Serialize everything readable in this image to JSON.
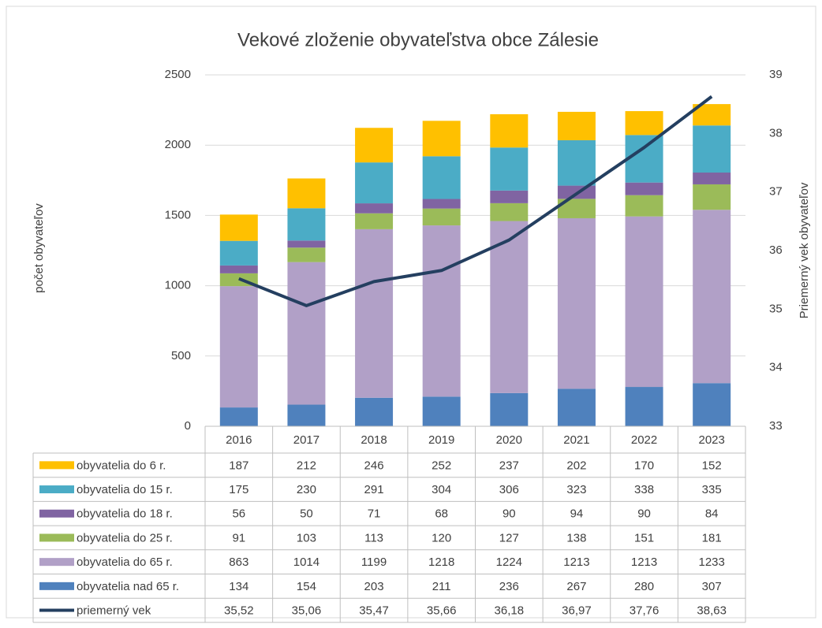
{
  "chart_data": {
    "type": "bar",
    "stacked": true,
    "title": "Vekové zloženie obyvateľstva obce Zálesie",
    "y_label": "počet obyvateľov",
    "y2_label": "Priemerný vek obyvateľov",
    "categories": [
      "2016",
      "2017",
      "2018",
      "2019",
      "2020",
      "2021",
      "2022",
      "2023"
    ],
    "ylim": [
      0,
      2500
    ],
    "yticks": [
      0,
      500,
      1000,
      1500,
      2000,
      2500
    ],
    "y2lim": [
      33,
      39
    ],
    "y2ticks": [
      33,
      34,
      35,
      36,
      37,
      38,
      39
    ],
    "grid": true,
    "data_table": true,
    "series": [
      {
        "name": "obyvatelia do 6 r.",
        "color": "#FFC000",
        "values": [
          187,
          212,
          246,
          252,
          237,
          202,
          170,
          152
        ]
      },
      {
        "name": "obyvatelia do 15 r.",
        "color": "#4BACC6",
        "values": [
          175,
          230,
          291,
          304,
          306,
          323,
          338,
          335
        ]
      },
      {
        "name": "obyvatelia do 18 r.",
        "color": "#8064A2",
        "values": [
          56,
          50,
          71,
          68,
          90,
          94,
          90,
          84
        ]
      },
      {
        "name": "obyvatelia do 25 r.",
        "color": "#9BBB59",
        "values": [
          91,
          103,
          113,
          120,
          127,
          138,
          151,
          181
        ]
      },
      {
        "name": "obyvatelia do 65 r.",
        "color": "#B1A0C7",
        "values": [
          863,
          1014,
          1199,
          1218,
          1224,
          1213,
          1213,
          1233
        ]
      },
      {
        "name": "obyvatelia nad 65 r.",
        "color": "#4F81BD",
        "values": [
          134,
          154,
          203,
          211,
          236,
          267,
          280,
          307
        ]
      },
      {
        "name": "priemerný vek",
        "color": "#243F60",
        "type": "line",
        "axis": "y2",
        "values": [
          35.52,
          35.06,
          35.47,
          35.66,
          36.18,
          36.97,
          37.76,
          38.63
        ],
        "value_labels": [
          "35,52",
          "35,06",
          "35,47",
          "35,66",
          "36,18",
          "36,97",
          "37,76",
          "38,63"
        ]
      }
    ]
  }
}
